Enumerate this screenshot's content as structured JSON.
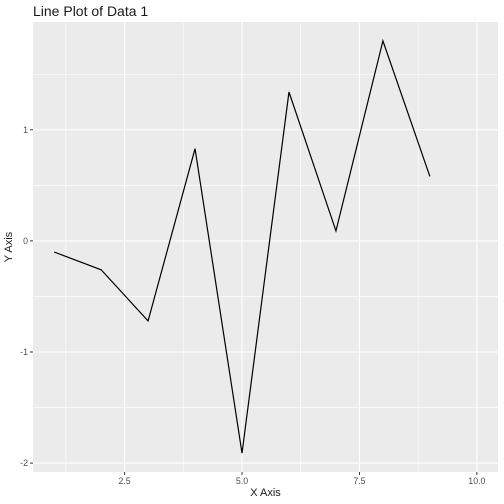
{
  "chart_data": {
    "type": "line",
    "title": "Line Plot of Data 1",
    "xlabel": "X Axis",
    "ylabel": "Y Axis",
    "x": [
      1,
      2,
      3,
      4,
      5,
      6,
      7,
      8,
      9
    ],
    "series": [
      {
        "values": [
          -0.1,
          -0.26,
          -0.72,
          0.83,
          -1.91,
          1.34,
          0.09,
          1.8,
          0.58
        ]
      }
    ],
    "xlim": [
      0.55,
      10.45
    ],
    "ylim": [
      -2.08,
      1.97
    ],
    "x_ticks": [
      2.5,
      5.0,
      7.5,
      10.0
    ],
    "x_tick_labels": [
      "2.5",
      "5.0",
      "7.5",
      "10.0"
    ],
    "y_ticks": [
      -2,
      -1,
      0,
      1
    ],
    "y_tick_labels": [
      "-2",
      "-1",
      "0",
      "1"
    ],
    "grid": true,
    "colors": {
      "panel": "#ebebeb",
      "grid": "#ffffff",
      "line": "#000000",
      "text": "#1a1a1a",
      "tick_text": "#4d4d4d"
    }
  }
}
